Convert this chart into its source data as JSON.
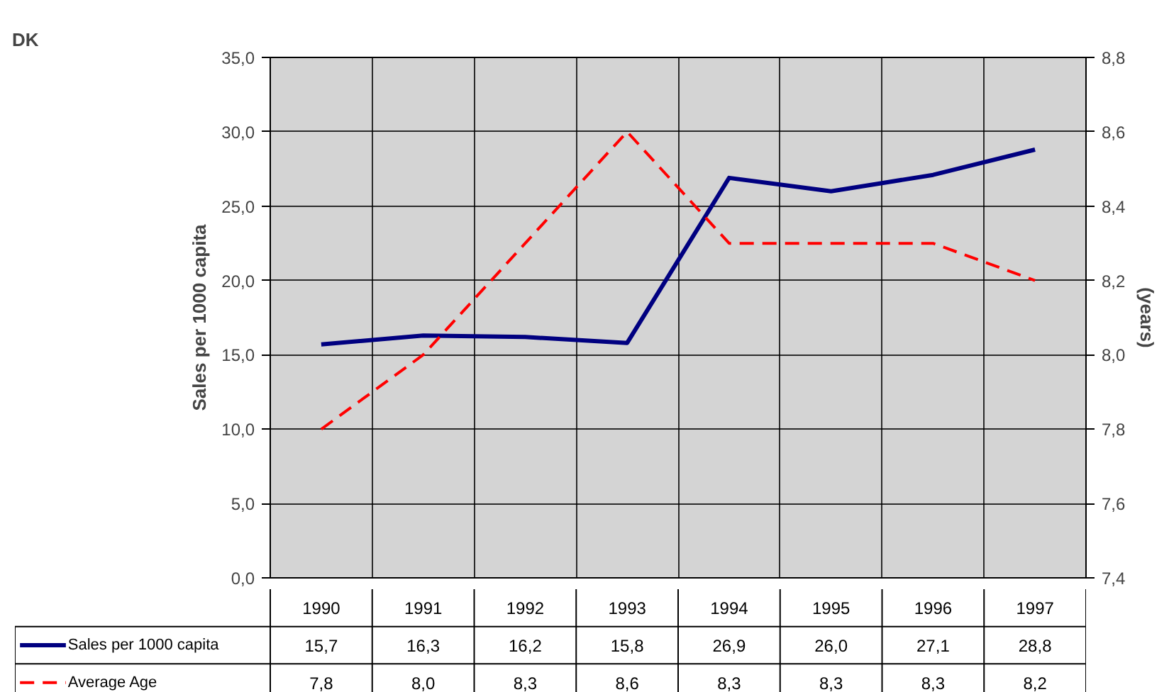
{
  "chart_data": {
    "type": "line",
    "title": "DK",
    "ylabel": "Sales per 1000 capita",
    "y2label": "(years)",
    "categories": [
      "1990",
      "1991",
      "1992",
      "1993",
      "1994",
      "1995",
      "1996",
      "1997"
    ],
    "series": [
      {
        "name": "Sales per 1000 capita",
        "color": "#000080",
        "line_style": "solid",
        "values": [
          15.7,
          16.3,
          16.2,
          15.8,
          26.9,
          26.0,
          27.1,
          28.8
        ],
        "value_labels": [
          "15,7",
          "16,3",
          "16,2",
          "15,8",
          "26,9",
          "26,0",
          "27,1",
          "28,8"
        ]
      },
      {
        "name": "Average Age",
        "color": "#ff0000",
        "line_style": "dashed",
        "axis": "y2",
        "values": [
          7.8,
          8.0,
          8.3,
          8.6,
          8.3,
          8.3,
          8.3,
          8.2
        ],
        "value_labels": [
          "7,8",
          "8,0",
          "8,3",
          "8,6",
          "8,3",
          "8,3",
          "8,3",
          "8,2"
        ]
      }
    ],
    "ylim": [
      0,
      35
    ],
    "yticks": [
      {
        "value": 0,
        "label": "0,0"
      },
      {
        "value": 5,
        "label": "5,0"
      },
      {
        "value": 10,
        "label": "10,0"
      },
      {
        "value": 15,
        "label": "15,0"
      },
      {
        "value": 20,
        "label": "20,0"
      },
      {
        "value": 25,
        "label": "25,0"
      },
      {
        "value": 30,
        "label": "30,0"
      },
      {
        "value": 35,
        "label": "35,0"
      }
    ],
    "y2lim": [
      7.4,
      8.8
    ],
    "y2ticks": [
      {
        "value": 7.4,
        "label": "7,4"
      },
      {
        "value": 7.6,
        "label": "7,6"
      },
      {
        "value": 7.8,
        "label": "7,8"
      },
      {
        "value": 8.0,
        "label": "8,0"
      },
      {
        "value": 8.2,
        "label": "8,2"
      },
      {
        "value": 8.4,
        "label": "8,4"
      },
      {
        "value": 8.6,
        "label": "8,6"
      },
      {
        "value": 8.8,
        "label": "8,8"
      }
    ],
    "grid": true,
    "legend": "bottom",
    "marker": "none"
  }
}
